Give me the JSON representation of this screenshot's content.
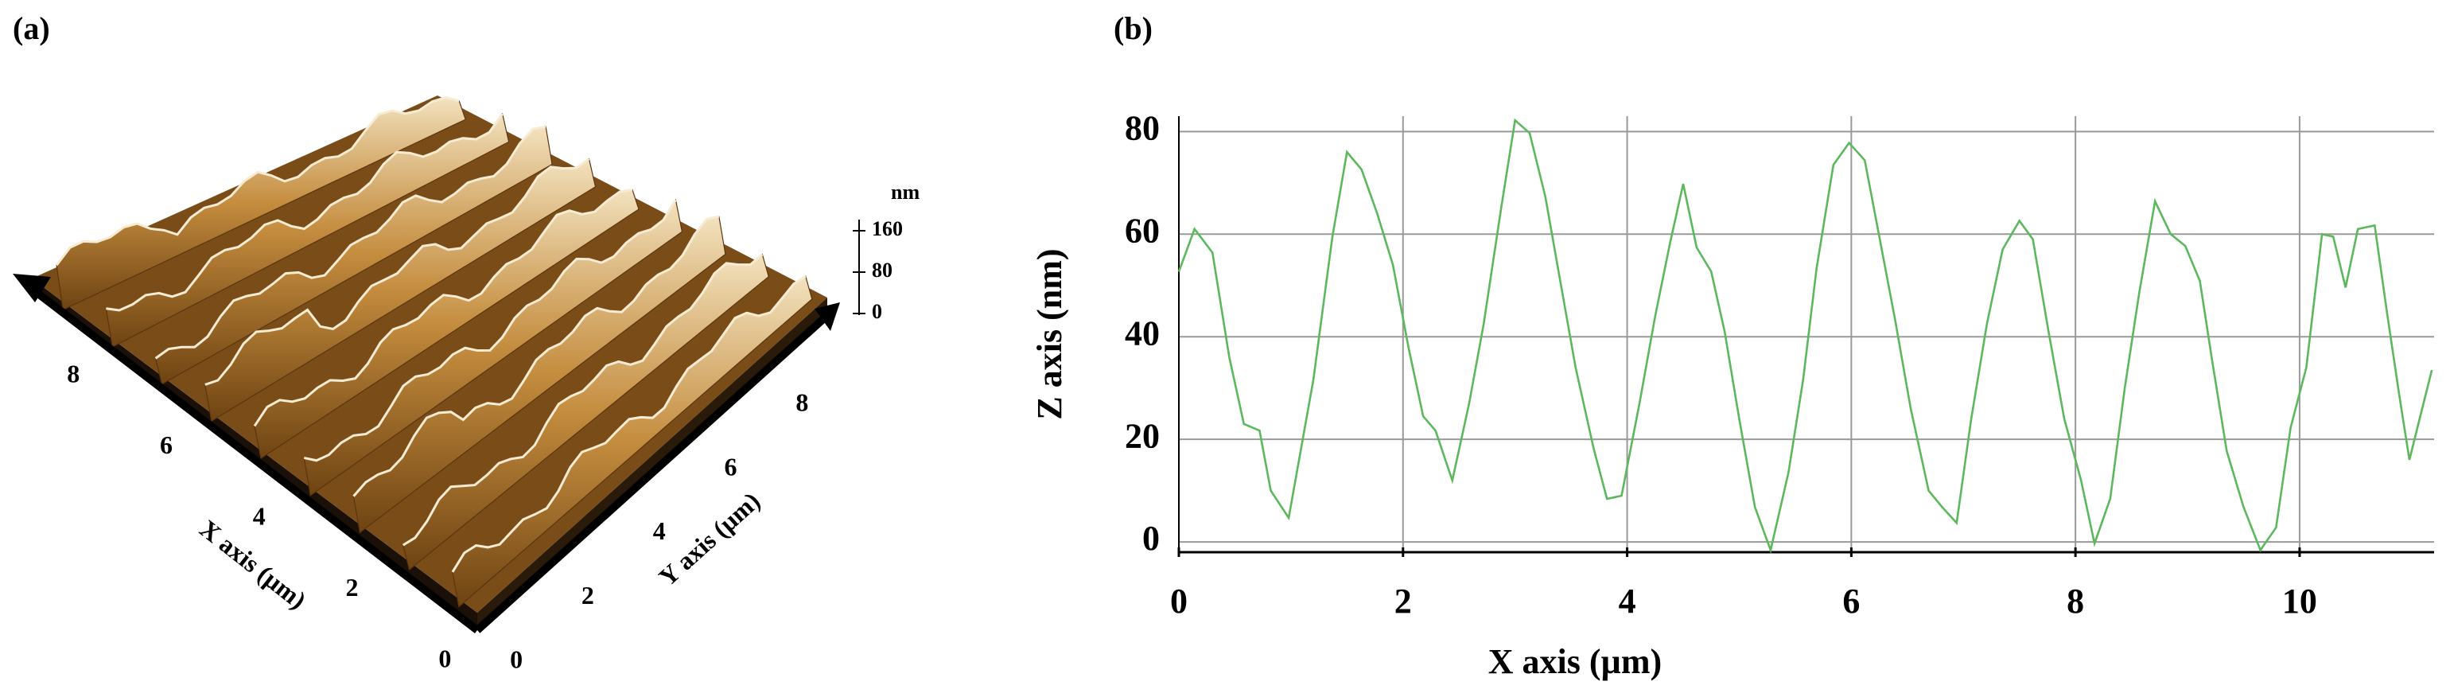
{
  "chart_data": [
    {
      "type": "surface3d",
      "panel_label": "(a)",
      "x_label": "X axis (µm)",
      "y_label": "Y axis (µm)",
      "z_unit": "nm",
      "xticks": [
        0,
        2,
        4,
        6,
        8
      ],
      "yticks": [
        0,
        2,
        4,
        6,
        8
      ],
      "zticks": [
        0,
        80,
        160
      ]
    },
    {
      "type": "line",
      "panel_label": "(b)",
      "x_label": "X axis (µm)",
      "y_label": "Z axis (nm)",
      "color": "#5cb85c",
      "grid": true,
      "xlim": [
        0,
        11.2
      ],
      "ylim": [
        -2,
        83
      ],
      "xticks": [
        0,
        2,
        4,
        6,
        8,
        10
      ],
      "yticks": [
        0,
        20,
        40,
        60,
        80
      ],
      "x": [
        0,
        0.14,
        0.3,
        0.45,
        0.58,
        0.72,
        0.82,
        0.98,
        1.2,
        1.37,
        1.5,
        1.63,
        1.77,
        1.91,
        2.05,
        2.18,
        2.29,
        2.44,
        2.59,
        2.72,
        2.88,
        3.0,
        3.13,
        3.27,
        3.41,
        3.54,
        3.7,
        3.82,
        3.95,
        4.11,
        4.25,
        4.38,
        4.5,
        4.62,
        4.75,
        4.87,
        5.0,
        5.14,
        5.28,
        5.44,
        5.57,
        5.69,
        5.84,
        5.98,
        6.12,
        6.25,
        6.39,
        6.53,
        6.69,
        6.81,
        6.94,
        7.07,
        7.21,
        7.35,
        7.5,
        7.62,
        7.76,
        7.9,
        8.05,
        8.17,
        8.31,
        8.44,
        8.57,
        8.71,
        8.85,
        8.98,
        9.11,
        9.22,
        9.35,
        9.5,
        9.65,
        9.79,
        9.92,
        10.06,
        10.2,
        10.3,
        10.41,
        10.52,
        10.67,
        10.78,
        10.89,
        10.98,
        11.08,
        11.18
      ],
      "values": [
        52.7,
        61,
        56.4,
        36,
        23,
        21.7,
        10,
        4.7,
        31.6,
        59.5,
        76,
        72.6,
        64,
        54,
        37.8,
        24.5,
        21.7,
        12,
        27,
        42.5,
        65.7,
        82.2,
        79.7,
        67.3,
        50,
        34,
        18.3,
        8.4,
        9,
        27,
        44,
        58,
        69.8,
        57.4,
        52.7,
        41,
        24,
        6.8,
        -1.6,
        13.6,
        31.6,
        53.3,
        73.5,
        77.8,
        74.4,
        59.5,
        43.4,
        26,
        10,
        6.8,
        3.7,
        24,
        42.5,
        57,
        62.6,
        59,
        41,
        24,
        12,
        -0.3,
        8.4,
        30,
        48.7,
        66.4,
        60,
        57.7,
        50.9,
        35.3,
        17.7,
        6.8,
        -1.6,
        2.8,
        22.3,
        34,
        60,
        59.5,
        49.6,
        61,
        61.7,
        44.7,
        28.5,
        16,
        24.8,
        33.5
      ]
    }
  ]
}
